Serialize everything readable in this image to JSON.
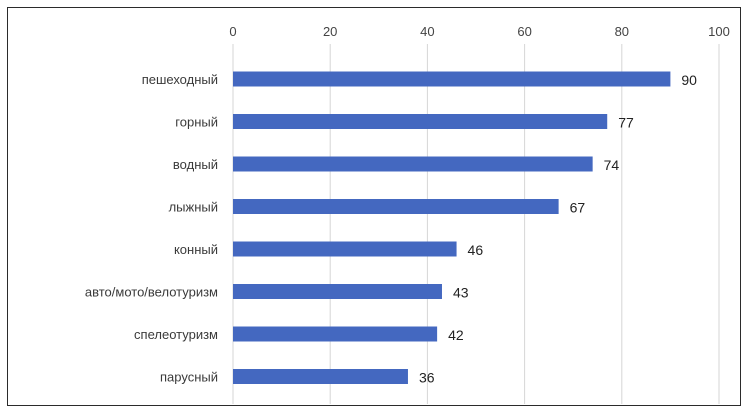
{
  "chart_data": {
    "type": "bar",
    "orientation": "horizontal",
    "categories": [
      "пешеходный",
      "горный",
      "водный",
      "лыжный",
      "конный",
      "авто/мото/велотуризм",
      "спелеотуризм",
      "парусный"
    ],
    "values": [
      90,
      77,
      74,
      67,
      46,
      43,
      42,
      36
    ],
    "xlim": [
      0,
      100
    ],
    "xticks": [
      0,
      20,
      40,
      60,
      80,
      100
    ],
    "xaxis_position": "top",
    "grid": true,
    "legend": "none",
    "bar_color": "#4468c0"
  }
}
